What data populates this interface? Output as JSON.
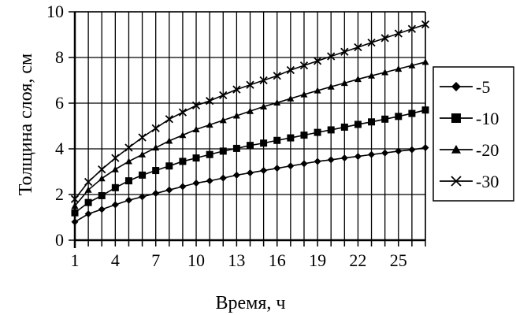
{
  "chart_data": {
    "type": "line",
    "xlabel": "Время, ч",
    "ylabel": "Толщина слоя, см",
    "xlim": [
      1,
      27
    ],
    "ylim": [
      0,
      10
    ],
    "x_ticks": [
      1,
      4,
      7,
      10,
      13,
      16,
      19,
      22,
      25
    ],
    "y_ticks": [
      0,
      2,
      4,
      6,
      8,
      10
    ],
    "grid": true,
    "legend_position": "right",
    "x": [
      1,
      2,
      3,
      4,
      5,
      6,
      7,
      8,
      9,
      10,
      11,
      12,
      13,
      14,
      15,
      16,
      17,
      18,
      19,
      20,
      21,
      22,
      23,
      24,
      25,
      26,
      27
    ],
    "series": [
      {
        "name": "-5",
        "marker": "diamond",
        "values": [
          0.8,
          1.15,
          1.35,
          1.55,
          1.75,
          1.9,
          2.05,
          2.2,
          2.35,
          2.5,
          2.6,
          2.72,
          2.85,
          2.95,
          3.05,
          3.15,
          3.25,
          3.35,
          3.45,
          3.52,
          3.6,
          3.67,
          3.75,
          3.82,
          3.9,
          3.96,
          4.05
        ]
      },
      {
        "name": "-10",
        "marker": "square",
        "values": [
          1.2,
          1.65,
          1.95,
          2.3,
          2.6,
          2.85,
          3.05,
          3.25,
          3.45,
          3.6,
          3.75,
          3.9,
          4.02,
          4.15,
          4.25,
          4.37,
          4.48,
          4.6,
          4.72,
          4.83,
          4.95,
          5.07,
          5.18,
          5.3,
          5.42,
          5.55,
          5.7
        ]
      },
      {
        "name": "-20",
        "marker": "triangle",
        "values": [
          1.5,
          2.2,
          2.7,
          3.1,
          3.45,
          3.75,
          4.05,
          4.35,
          4.6,
          4.85,
          5.05,
          5.25,
          5.45,
          5.65,
          5.85,
          6.02,
          6.2,
          6.38,
          6.55,
          6.72,
          6.88,
          7.05,
          7.2,
          7.35,
          7.5,
          7.65,
          7.8
        ]
      },
      {
        "name": "-30",
        "marker": "cross",
        "values": [
          1.8,
          2.55,
          3.1,
          3.6,
          4.05,
          4.5,
          4.9,
          5.3,
          5.6,
          5.9,
          6.1,
          6.35,
          6.6,
          6.8,
          7.0,
          7.2,
          7.45,
          7.65,
          7.85,
          8.05,
          8.25,
          8.45,
          8.65,
          8.85,
          9.05,
          9.25,
          9.45
        ]
      }
    ]
  }
}
